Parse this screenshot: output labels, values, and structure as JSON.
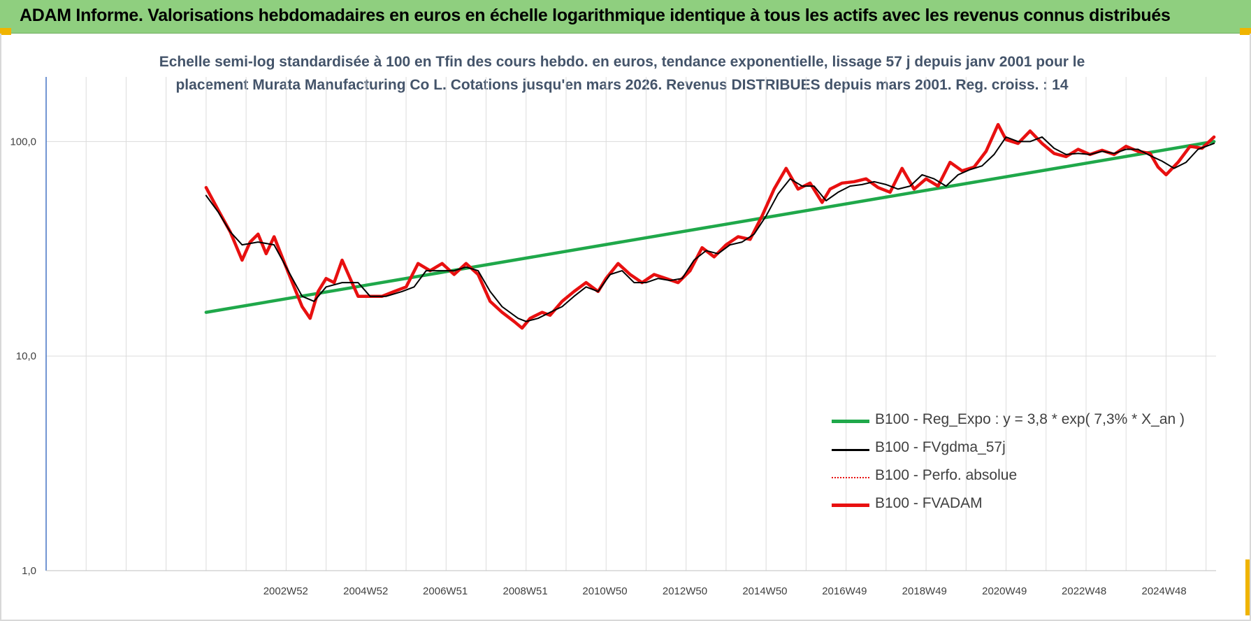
{
  "banner": {
    "title": "ADAM Informe. Valorisations hebdomadaires en euros en échelle logarithmique identique à tous les actifs avec les revenus connus distribués"
  },
  "colors": {
    "banner_bg": "#8fcf7f",
    "corner_marker": "#f0b400",
    "title_text": "#44546a",
    "regression": "#1fa84a",
    "fvgdma": "#000000",
    "perfo": "#e81010",
    "fvadam": "#e81010"
  },
  "chart_data": {
    "type": "line",
    "title": "Echelle semi-log standardisée à 100 en Tfin des cours hebdo. en euros, tendance exponentielle, lissage 57 j depuis janv 2001 pour le placement Murata Manufacturing Co L. Cotations jusqu'en mars 2026. Revenus DISTRIBUES depuis mars 2001. Reg. croiss. : 14",
    "title_lines": [
      "Echelle semi-log standardisée à 100 en Tfin des cours hebdo. en euros, tendance exponentielle, lissage 57 j depuis janv 2001 pour le",
      "placement Murata Manufacturing Co L. Cotations jusqu'en mars 2026. Revenus DISTRIBUES depuis mars 2001. Reg. croiss. : 14"
    ],
    "y_scale": "log",
    "ylim": [
      1,
      200
    ],
    "y_ticks": [
      "100,0",
      "10,0",
      "1,0"
    ],
    "y_tick_values": [
      100,
      10,
      1
    ],
    "xlim": [
      1997,
      2026.25
    ],
    "x_tick_labels": [
      "2002W52",
      "2004W52",
      "2006W51",
      "2008W51",
      "2010W50",
      "2012W50",
      "2014W50",
      "2016W49",
      "2018W49",
      "2020W49",
      "2022W48",
      "2024W48"
    ],
    "x_tick_values": [
      2002.99,
      2004.99,
      2006.98,
      2008.98,
      2010.97,
      2012.97,
      2014.97,
      2016.96,
      2018.96,
      2020.96,
      2022.95,
      2024.95
    ],
    "grid": "vertical and horizontal",
    "legend_position": "bottom-right",
    "series": [
      {
        "name": "B100 - Reg_Expo : y = 3,8 * exp( 7,3% *  X_an )",
        "style": "solid-thick",
        "color": "#1fa84a",
        "points": [
          [
            2001.0,
            16
          ],
          [
            2026.2,
            100
          ]
        ]
      },
      {
        "name": "B100 - FVgdma_57j",
        "style": "solid-thin",
        "color": "#000000",
        "points": [
          [
            2001.0,
            56
          ],
          [
            2001.3,
            47
          ],
          [
            2001.6,
            38
          ],
          [
            2001.9,
            33
          ],
          [
            2002.3,
            34
          ],
          [
            2002.7,
            33
          ],
          [
            2003.0,
            26
          ],
          [
            2003.4,
            19
          ],
          [
            2003.7,
            18
          ],
          [
            2004.0,
            21
          ],
          [
            2004.4,
            22
          ],
          [
            2004.8,
            22
          ],
          [
            2005.1,
            19
          ],
          [
            2005.5,
            19
          ],
          [
            2005.9,
            20
          ],
          [
            2006.2,
            21
          ],
          [
            2006.5,
            25
          ],
          [
            2006.9,
            25
          ],
          [
            2007.2,
            25
          ],
          [
            2007.5,
            26
          ],
          [
            2007.8,
            25
          ],
          [
            2008.1,
            20
          ],
          [
            2008.4,
            17
          ],
          [
            2008.8,
            15
          ],
          [
            2009.0,
            14.5
          ],
          [
            2009.3,
            15
          ],
          [
            2009.6,
            16
          ],
          [
            2009.9,
            17
          ],
          [
            2010.2,
            19
          ],
          [
            2010.5,
            21
          ],
          [
            2010.8,
            20
          ],
          [
            2011.1,
            24
          ],
          [
            2011.4,
            25
          ],
          [
            2011.7,
            22
          ],
          [
            2012.0,
            22
          ],
          [
            2012.3,
            23
          ],
          [
            2012.6,
            22.5
          ],
          [
            2012.9,
            23
          ],
          [
            2013.2,
            28
          ],
          [
            2013.5,
            31
          ],
          [
            2013.8,
            30
          ],
          [
            2014.1,
            33
          ],
          [
            2014.4,
            34
          ],
          [
            2014.7,
            37
          ],
          [
            2015.0,
            45
          ],
          [
            2015.3,
            57
          ],
          [
            2015.6,
            67
          ],
          [
            2015.9,
            62
          ],
          [
            2016.2,
            62
          ],
          [
            2016.5,
            53
          ],
          [
            2016.8,
            58
          ],
          [
            2017.1,
            62
          ],
          [
            2017.4,
            63
          ],
          [
            2017.7,
            65
          ],
          [
            2018.0,
            63
          ],
          [
            2018.3,
            60
          ],
          [
            2018.6,
            62
          ],
          [
            2018.9,
            70
          ],
          [
            2019.2,
            67
          ],
          [
            2019.5,
            62
          ],
          [
            2019.8,
            70
          ],
          [
            2020.1,
            74
          ],
          [
            2020.4,
            77
          ],
          [
            2020.7,
            87
          ],
          [
            2021.0,
            105
          ],
          [
            2021.3,
            100
          ],
          [
            2021.6,
            100
          ],
          [
            2021.9,
            105
          ],
          [
            2022.2,
            93
          ],
          [
            2022.5,
            87
          ],
          [
            2022.8,
            88
          ],
          [
            2023.1,
            87
          ],
          [
            2023.4,
            90
          ],
          [
            2023.7,
            88
          ],
          [
            2024.0,
            92
          ],
          [
            2024.3,
            92
          ],
          [
            2024.6,
            86
          ],
          [
            2024.9,
            81
          ],
          [
            2025.2,
            75
          ],
          [
            2025.5,
            80
          ],
          [
            2025.8,
            92
          ],
          [
            2026.2,
            98
          ]
        ]
      },
      {
        "name": "B100 - Perfo. absolue",
        "style": "dotted",
        "color": "#e81010",
        "points": []
      },
      {
        "name": "B100 - FVADAM",
        "style": "solid-thick",
        "color": "#e81010",
        "points": [
          [
            2001.0,
            61
          ],
          [
            2001.3,
            48
          ],
          [
            2001.6,
            38
          ],
          [
            2001.9,
            28
          ],
          [
            2002.1,
            34
          ],
          [
            2002.3,
            37
          ],
          [
            2002.5,
            30
          ],
          [
            2002.7,
            36
          ],
          [
            2003.0,
            26
          ],
          [
            2003.2,
            21
          ],
          [
            2003.4,
            17
          ],
          [
            2003.6,
            15
          ],
          [
            2003.8,
            20
          ],
          [
            2004.0,
            23
          ],
          [
            2004.2,
            22
          ],
          [
            2004.4,
            28
          ],
          [
            2004.6,
            23
          ],
          [
            2004.8,
            19
          ],
          [
            2005.1,
            19
          ],
          [
            2005.4,
            19
          ],
          [
            2005.7,
            20
          ],
          [
            2006.0,
            21
          ],
          [
            2006.3,
            27
          ],
          [
            2006.6,
            25
          ],
          [
            2006.9,
            27
          ],
          [
            2007.2,
            24
          ],
          [
            2007.5,
            27
          ],
          [
            2007.8,
            24
          ],
          [
            2008.1,
            18
          ],
          [
            2008.4,
            16
          ],
          [
            2008.7,
            14.5
          ],
          [
            2008.9,
            13.5
          ],
          [
            2009.1,
            15
          ],
          [
            2009.4,
            16
          ],
          [
            2009.6,
            15.5
          ],
          [
            2009.9,
            18
          ],
          [
            2010.2,
            20
          ],
          [
            2010.5,
            22
          ],
          [
            2010.8,
            20
          ],
          [
            2011.0,
            23
          ],
          [
            2011.3,
            27
          ],
          [
            2011.6,
            24
          ],
          [
            2011.9,
            22
          ],
          [
            2012.2,
            24
          ],
          [
            2012.5,
            23
          ],
          [
            2012.8,
            22
          ],
          [
            2013.1,
            25
          ],
          [
            2013.4,
            32
          ],
          [
            2013.7,
            29
          ],
          [
            2014.0,
            33
          ],
          [
            2014.3,
            36
          ],
          [
            2014.6,
            35
          ],
          [
            2014.9,
            45
          ],
          [
            2015.2,
            60
          ],
          [
            2015.5,
            75
          ],
          [
            2015.8,
            60
          ],
          [
            2016.1,
            64
          ],
          [
            2016.4,
            52
          ],
          [
            2016.6,
            60
          ],
          [
            2016.9,
            64
          ],
          [
            2017.2,
            65
          ],
          [
            2017.5,
            67
          ],
          [
            2017.8,
            61
          ],
          [
            2018.1,
            58
          ],
          [
            2018.4,
            75
          ],
          [
            2018.7,
            60
          ],
          [
            2019.0,
            67
          ],
          [
            2019.3,
            62
          ],
          [
            2019.6,
            80
          ],
          [
            2019.9,
            73
          ],
          [
            2020.2,
            76
          ],
          [
            2020.5,
            90
          ],
          [
            2020.8,
            120
          ],
          [
            2021.0,
            102
          ],
          [
            2021.3,
            98
          ],
          [
            2021.6,
            112
          ],
          [
            2021.9,
            98
          ],
          [
            2022.2,
            88
          ],
          [
            2022.5,
            85
          ],
          [
            2022.8,
            92
          ],
          [
            2023.1,
            87
          ],
          [
            2023.4,
            91
          ],
          [
            2023.7,
            87
          ],
          [
            2024.0,
            95
          ],
          [
            2024.3,
            90
          ],
          [
            2024.6,
            88
          ],
          [
            2024.8,
            76
          ],
          [
            2025.0,
            70
          ],
          [
            2025.3,
            80
          ],
          [
            2025.6,
            95
          ],
          [
            2025.9,
            93
          ],
          [
            2026.2,
            105
          ]
        ]
      }
    ]
  }
}
